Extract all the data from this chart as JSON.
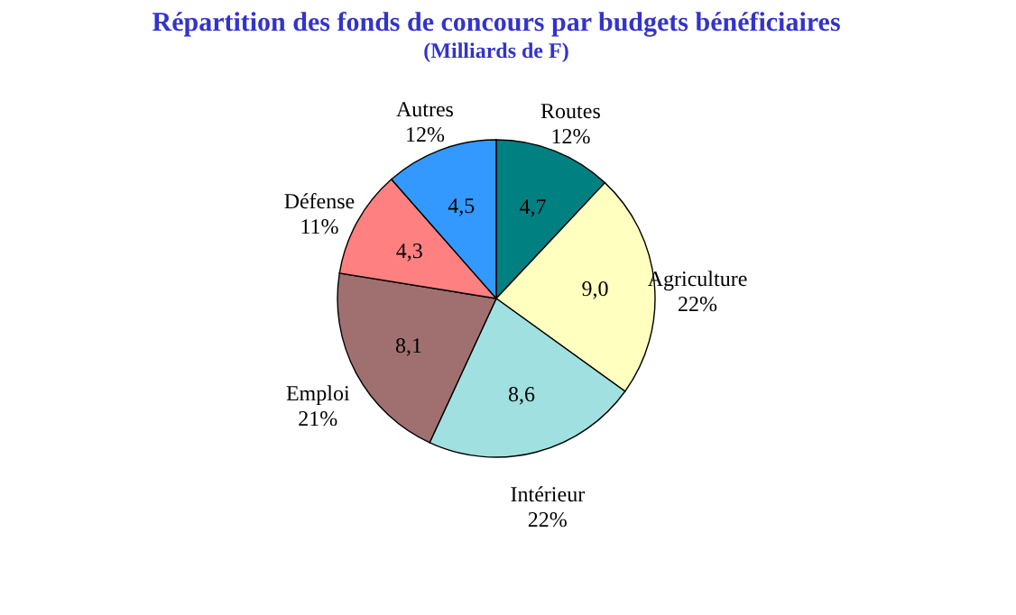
{
  "chart_data": {
    "type": "pie",
    "title": "Répartition des fonds de concours par budgets bénéficiaires",
    "subtitle": "(Milliards de F)",
    "categories": [
      "Routes",
      "Agriculture",
      "Intérieur",
      "Emploi",
      "Défense",
      "Autres"
    ],
    "values": [
      4.7,
      9.0,
      8.6,
      8.1,
      4.3,
      4.5
    ],
    "value_labels": [
      "4,7",
      "9,0",
      "8,6",
      "8,1",
      "4,3",
      "4,5"
    ],
    "colors": [
      "#008080",
      "#ffffc0",
      "#a0e0e0",
      "#a07070",
      "#ff8080",
      "#3399ff"
    ],
    "annotations": [
      "12%",
      "22%",
      "22%",
      "21%",
      "11%",
      "12%"
    ]
  }
}
